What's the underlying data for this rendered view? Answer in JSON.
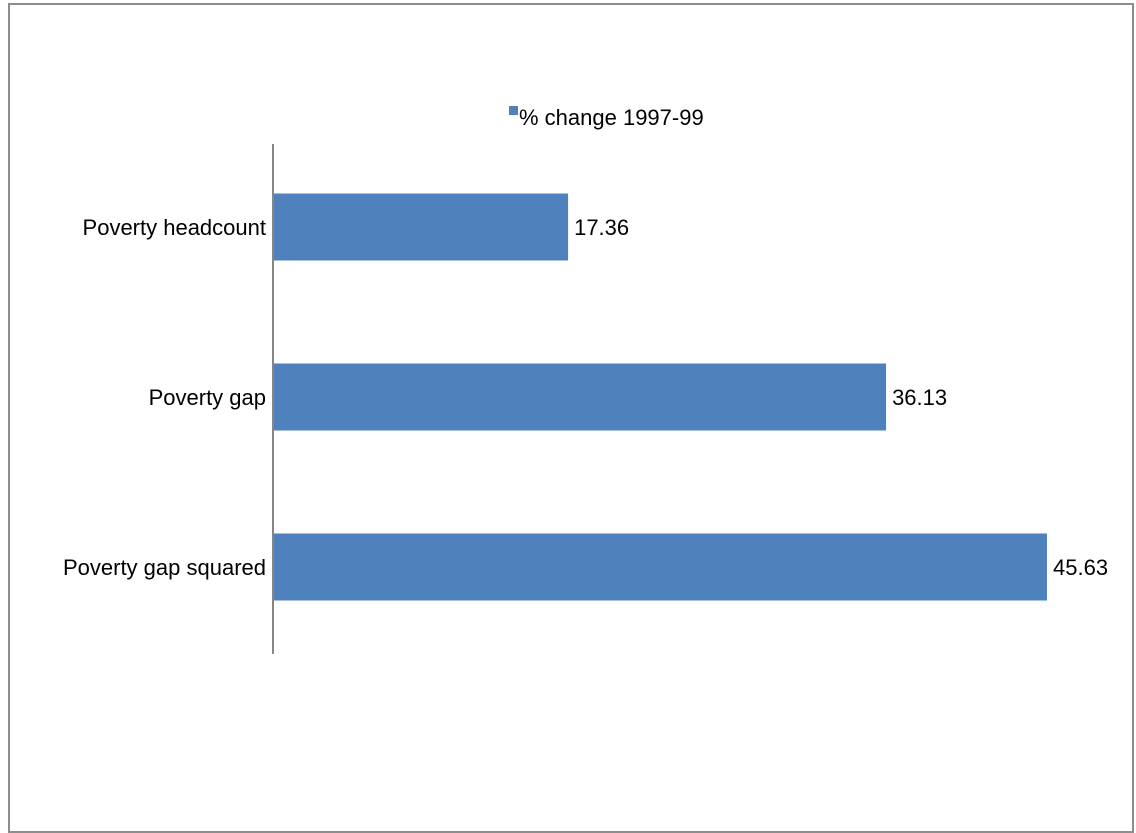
{
  "chart_data": {
    "type": "bar",
    "orientation": "horizontal",
    "categories": [
      "Poverty headcount",
      "Poverty gap",
      "Poverty gap squared"
    ],
    "series": [
      {
        "name": "% change 1997-99",
        "values": [
          17.36,
          36.13,
          45.63
        ],
        "color": "#4f81bd"
      }
    ],
    "data_labels": [
      "17.36",
      "36.13",
      "45.63"
    ],
    "xlim": [
      0,
      46
    ],
    "legend_position": "top",
    "grid": false,
    "xaxis_visible": false
  }
}
